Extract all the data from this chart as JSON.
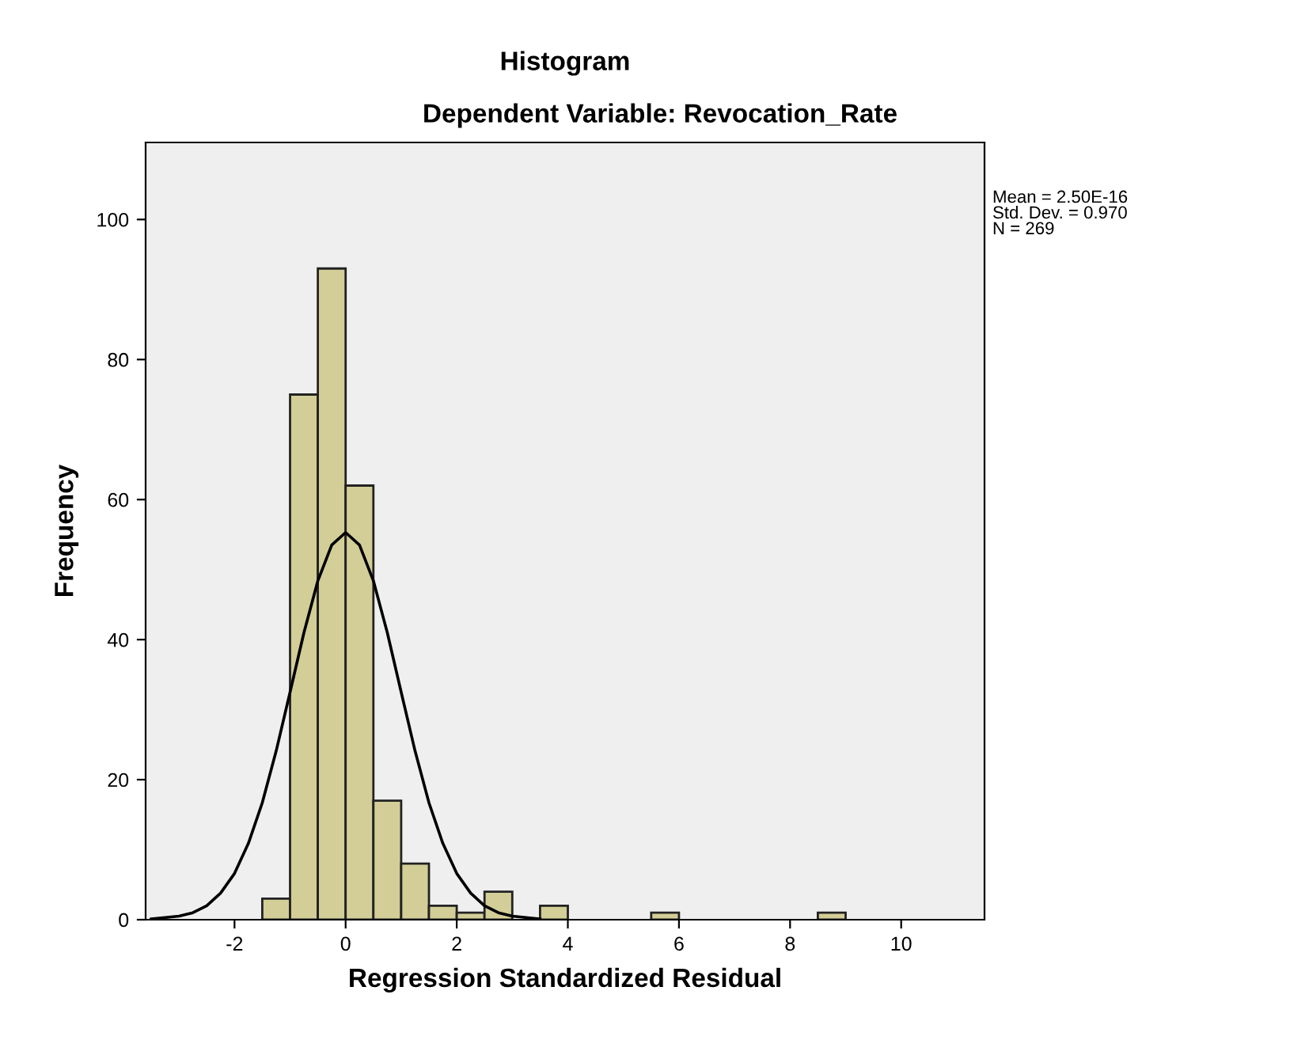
{
  "chart_data": {
    "type": "histogram",
    "title": "Histogram",
    "subtitle": "Dependent Variable: Revocation_Rate",
    "xlabel": "Regression Standardized Residual",
    "ylabel": "Frequency",
    "bins": [
      -1.5,
      -1.0,
      -0.5,
      0.0,
      0.5,
      1.0,
      1.5,
      2.0,
      2.5,
      3.0,
      3.5,
      4.0,
      4.5,
      5.0,
      5.5,
      6.0,
      6.5,
      7.0,
      7.5,
      8.0,
      8.5,
      9.0
    ],
    "values": [
      3,
      75,
      93,
      62,
      17,
      8,
      2,
      1,
      4,
      0,
      2,
      0,
      0,
      0,
      1,
      0,
      0,
      0,
      0,
      0,
      1
    ],
    "color": "#d3ce97",
    "series": [
      {
        "type": "line",
        "color": "#000000",
        "x": [
          -3.5,
          -3.0,
          -2.75,
          -2.5,
          -2.25,
          -2.0,
          -1.75,
          -1.5,
          -1.25,
          -1.0,
          -0.75,
          -0.5,
          -0.25,
          0,
          0.25,
          0.5,
          0.75,
          1.0,
          1.25,
          1.5,
          1.75,
          2.0,
          2.25,
          2.5,
          2.75,
          3.0,
          3.5
        ],
        "values": [
          0.1,
          0.5,
          1.0,
          2.0,
          3.8,
          6.6,
          10.9,
          16.7,
          24.1,
          32.5,
          41.0,
          48.4,
          53.5,
          55.3,
          53.5,
          48.4,
          41.0,
          32.5,
          24.1,
          16.7,
          10.9,
          6.6,
          3.8,
          2.0,
          1.0,
          0.5,
          0.1
        ]
      }
    ],
    "xlim": [
      -3.6,
      11.5
    ],
    "ylim": [
      0,
      111
    ],
    "xticks": [
      -2,
      0,
      2,
      4,
      6,
      8,
      10
    ],
    "yticks": [
      0,
      20,
      40,
      60,
      80,
      100
    ],
    "grid": false,
    "legend": false,
    "annotations": [
      "Mean = 2.50E-16\nStd. Dev. = 0.970\nN = 269"
    ]
  }
}
